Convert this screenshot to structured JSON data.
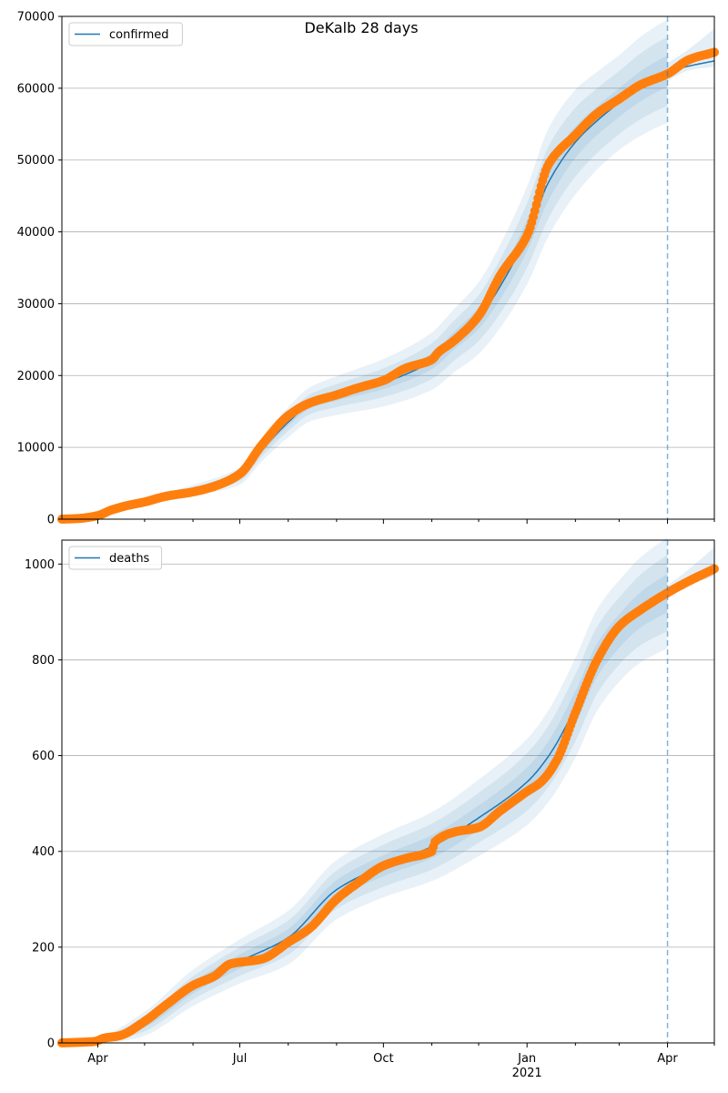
{
  "figure": {
    "suptitle": "DeKalb 28 days"
  },
  "chart_data": [
    {
      "type": "line",
      "legend": {
        "label": "confirmed",
        "placement": "top-left"
      },
      "ylim": [
        0,
        70000
      ],
      "yticks": [
        0,
        10000,
        20000,
        30000,
        40000,
        50000,
        60000,
        70000
      ],
      "ytick_labels": [
        "0",
        "10000",
        "20000",
        "30000",
        "40000",
        "50000",
        "60000",
        "70000"
      ],
      "grid": "horizontal",
      "forecast_start": "2021-04-01",
      "model_line": {
        "x": [
          "2020-03-09",
          "2020-04-01",
          "2020-05-01",
          "2020-06-01",
          "2020-07-01",
          "2020-07-15",
          "2020-08-01",
          "2020-08-15",
          "2020-09-01",
          "2020-10-01",
          "2020-11-01",
          "2020-11-15",
          "2020-12-01",
          "2020-12-15",
          "2021-01-01",
          "2021-01-15",
          "2021-02-01",
          "2021-02-15",
          "2021-03-01",
          "2021-03-15",
          "2021-04-01",
          "2021-04-15",
          "2021-05-01"
        ],
        "y": [
          0,
          700,
          2400,
          4000,
          6000,
          9600,
          13500,
          16000,
          17200,
          19000,
          22000,
          24800,
          28000,
          32500,
          39500,
          47000,
          52500,
          55500,
          58000,
          60300,
          62300,
          63100,
          63800
        ]
      },
      "bands": {
        "x": [
          "2020-03-09",
          "2020-05-01",
          "2020-07-01",
          "2020-08-01",
          "2020-09-01",
          "2020-10-01",
          "2020-11-01",
          "2020-12-01",
          "2020-12-15",
          "2021-01-01",
          "2021-01-15",
          "2021-02-01",
          "2021-02-15",
          "2021-03-01",
          "2021-03-15",
          "2021-04-01"
        ],
        "half_widths": [
          [
            0,
            100,
            300,
            500,
            700,
            900,
            1100,
            1500,
            1800,
            2200,
            2500,
            2200,
            2000,
            2000,
            2100,
            2200
          ],
          [
            0,
            250,
            700,
            1200,
            1600,
            2000,
            2500,
            3200,
            3800,
            4500,
            5000,
            4800,
            4500,
            4400,
            4600,
            4800
          ],
          [
            0,
            450,
            1200,
            2100,
            2700,
            3300,
            4000,
            5000,
            5800,
            6800,
            7500,
            7300,
            6800,
            6600,
            6900,
            7200
          ]
        ]
      },
      "forecast_band": {
        "x": [
          "2021-04-01",
          "2021-04-15",
          "2021-05-01"
        ],
        "lower": [
          61000,
          62500,
          63000
        ],
        "upper": [
          63500,
          65500,
          68300
        ]
      },
      "observed": {
        "x": [
          "2020-03-09",
          "2020-03-20",
          "2020-04-01",
          "2020-04-10",
          "2020-04-20",
          "2020-05-01",
          "2020-05-15",
          "2020-06-01",
          "2020-06-15",
          "2020-07-01",
          "2020-07-15",
          "2020-08-01",
          "2020-08-15",
          "2020-09-01",
          "2020-09-15",
          "2020-10-01",
          "2020-10-15",
          "2020-11-01",
          "2020-11-05",
          "2020-11-15",
          "2020-12-01",
          "2020-12-15",
          "2021-01-01",
          "2021-01-15",
          "2021-02-01",
          "2021-02-15",
          "2021-03-01",
          "2021-03-15",
          "2021-04-01",
          "2021-04-15",
          "2021-05-01"
        ],
        "y": [
          0,
          100,
          500,
          1300,
          1900,
          2400,
          3200,
          3800,
          4600,
          6300,
          10300,
          14400,
          16200,
          17300,
          18300,
          19300,
          21000,
          22200,
          23200,
          24800,
          28300,
          34000,
          39500,
          49500,
          53500,
          56500,
          58500,
          60500,
          62000,
          64000,
          65000
        ]
      }
    },
    {
      "type": "line",
      "legend": {
        "label": "deaths",
        "placement": "top-left"
      },
      "ylim": [
        0,
        1050
      ],
      "yticks": [
        0,
        200,
        400,
        600,
        800,
        1000
      ],
      "ytick_labels": [
        "0",
        "200",
        "400",
        "600",
        "800",
        "1000"
      ],
      "grid": "horizontal",
      "xtick_labels": [
        "Apr",
        "Jul",
        "Oct",
        "Jan",
        "Apr"
      ],
      "xtick_dates": [
        "2020-04-01",
        "2020-07-01",
        "2020-10-01",
        "2021-01-01",
        "2021-04-01"
      ],
      "xtick_year_label": "2021",
      "forecast_start": "2021-04-01",
      "model_line": {
        "x": [
          "2020-03-09",
          "2020-03-25",
          "2020-04-10",
          "2020-05-01",
          "2020-06-01",
          "2020-07-01",
          "2020-08-01",
          "2020-09-01",
          "2020-10-01",
          "2020-11-01",
          "2020-12-01",
          "2021-01-01",
          "2021-01-15",
          "2021-02-01",
          "2021-02-15",
          "2021-03-01",
          "2021-03-15",
          "2021-04-01"
        ],
        "y": [
          0,
          0,
          12,
          40,
          115,
          170,
          220,
          320,
          370,
          410,
          470,
          545,
          600,
          700,
          800,
          860,
          905,
          940
        ]
      },
      "bands": {
        "x": [
          "2020-03-09",
          "2020-03-25",
          "2020-04-15",
          "2020-05-01",
          "2020-06-01",
          "2020-07-01",
          "2020-08-01",
          "2020-09-01",
          "2020-10-01",
          "2020-11-01",
          "2020-12-01",
          "2021-01-01",
          "2021-01-15",
          "2021-02-01",
          "2021-02-15",
          "2021-03-01",
          "2021-03-15",
          "2021-04-01"
        ],
        "half_widths": [
          [
            0,
            0,
            5,
            8,
            12,
            15,
            18,
            20,
            22,
            24,
            26,
            30,
            32,
            35,
            35,
            35,
            37,
            40
          ],
          [
            0,
            0,
            9,
            16,
            24,
            30,
            36,
            40,
            44,
            48,
            52,
            60,
            64,
            70,
            70,
            70,
            74,
            80
          ],
          [
            0,
            0,
            14,
            25,
            38,
            46,
            56,
            62,
            66,
            72,
            80,
            90,
            96,
            104,
            106,
            106,
            110,
            116
          ]
        ]
      },
      "forecast_band": {
        "x": [
          "2021-04-01",
          "2021-04-15",
          "2021-05-01"
        ],
        "lower": [
          930,
          955,
          975
        ],
        "upper": [
          955,
          990,
          1035
        ]
      },
      "observed": {
        "x": [
          "2020-03-09",
          "2020-03-30",
          "2020-04-05",
          "2020-04-15",
          "2020-05-01",
          "2020-05-15",
          "2020-06-01",
          "2020-06-15",
          "2020-06-25",
          "2020-07-15",
          "2020-08-01",
          "2020-08-15",
          "2020-09-01",
          "2020-09-15",
          "2020-10-01",
          "2020-10-15",
          "2020-11-01",
          "2020-11-03",
          "2020-11-15",
          "2020-12-01",
          "2020-12-15",
          "2021-01-01",
          "2021-01-10",
          "2021-01-20",
          "2021-02-01",
          "2021-02-15",
          "2021-03-01",
          "2021-03-15",
          "2021-04-01",
          "2021-04-15",
          "2021-05-01"
        ],
        "y": [
          0,
          3,
          10,
          15,
          45,
          80,
          120,
          140,
          165,
          175,
          210,
          240,
          300,
          335,
          370,
          385,
          400,
          420,
          440,
          450,
          485,
          525,
          545,
          590,
          690,
          800,
          870,
          905,
          940,
          965,
          990
        ]
      }
    }
  ]
}
